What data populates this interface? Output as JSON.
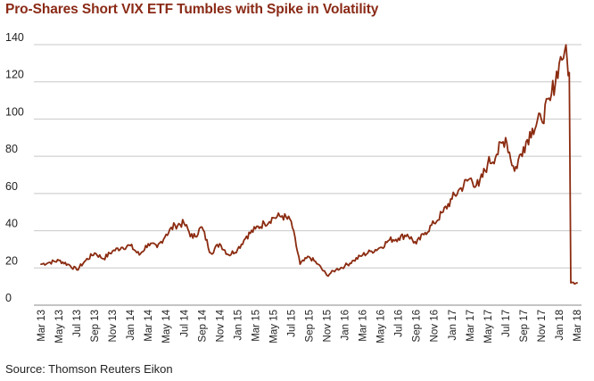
{
  "chart_data": {
    "type": "line",
    "title": "Pro-Shares Short VIX ETF Tumbles with Spike in Volatility",
    "source": "Source: Thomson Reuters Eikon",
    "xlabel": "",
    "ylabel": "",
    "ylim": [
      0,
      140
    ],
    "yticks": [
      0,
      20,
      40,
      60,
      80,
      100,
      120,
      140
    ],
    "grid": "horizontal",
    "legend": "none",
    "line_color": "#8b2b10",
    "x_tick_labels": [
      "Mar 13",
      "May 13",
      "Jul 13",
      "Sep 13",
      "Nov 13",
      "Jan 14",
      "Mar 14",
      "May 14",
      "Jul 14",
      "Sep 14",
      "Nov 14",
      "Jan 15",
      "Mar 15",
      "May 15",
      "Jul 15",
      "Sep 15",
      "Nov 15",
      "Jan 16",
      "Mar 16",
      "May 16",
      "Jul 16",
      "Sep 16",
      "Nov 16",
      "Jan 17",
      "Mar 17",
      "May 17",
      "Jul 17",
      "Sep 17",
      "Nov 17",
      "Jan 18",
      "Mar 18"
    ],
    "series": [
      {
        "x": [
          "2013-03",
          "2013-04",
          "2013-05",
          "2013-06",
          "2013-07",
          "2013-08",
          "2013-09",
          "2013-10",
          "2013-11",
          "2013-12",
          "2014-01",
          "2014-02",
          "2014-03",
          "2014-04",
          "2014-05",
          "2014-06",
          "2014-07",
          "2014-08",
          "2014-09",
          "2014-10",
          "2014-11",
          "2014-12",
          "2015-01",
          "2015-02",
          "2015-03",
          "2015-04",
          "2015-05",
          "2015-06",
          "2015-07",
          "2015-08",
          "2015-09",
          "2015-10",
          "2015-11",
          "2015-12",
          "2016-01",
          "2016-02",
          "2016-03",
          "2016-04",
          "2016-05",
          "2016-06",
          "2016-07",
          "2016-08",
          "2016-09",
          "2016-10",
          "2016-11",
          "2016-12",
          "2017-01",
          "2017-02",
          "2017-03",
          "2017-04",
          "2017-05",
          "2017-06",
          "2017-07",
          "2017-08",
          "2017-09",
          "2017-10",
          "2017-11",
          "2017-12",
          "2018-01",
          "2018-01-20",
          "2018-02-05",
          "2018-02-10",
          "2018-03"
        ],
        "values": [
          22,
          23,
          24,
          22,
          19,
          24,
          28,
          25,
          29,
          31,
          32,
          27,
          33,
          31,
          38,
          43,
          44,
          36,
          42,
          28,
          33,
          27,
          30,
          37,
          41,
          44,
          47,
          48,
          45,
          22,
          26,
          22,
          16,
          19,
          21,
          24,
          27,
          29,
          31,
          35,
          36,
          38,
          33,
          39,
          44,
          50,
          57,
          63,
          68,
          64,
          76,
          81,
          90,
          72,
          85,
          95,
          100,
          110,
          130,
          137,
          125,
          12,
          12
        ]
      }
    ]
  }
}
